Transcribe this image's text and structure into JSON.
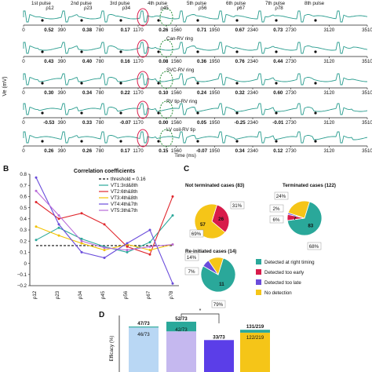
{
  "panel_a": {
    "pulse_labels": [
      "1st pulse",
      "2nd pulse",
      "3rd pulse",
      "4th pulse",
      "5th pulse",
      "6th pulse",
      "7th pulse",
      "8th pulse"
    ],
    "rho_labels": [
      "ρ12",
      "ρ23",
      "ρ34",
      "ρ45",
      "ρ56",
      "ρ67",
      "ρ78"
    ],
    "ylabel": "Ve (mV)",
    "xlabel": "Time (ms)",
    "time_ticks": [
      "0",
      "390",
      "780",
      "1170",
      "1560",
      "1950",
      "2340",
      "2730",
      "3120",
      "3510"
    ],
    "traces": [
      {
        "name": "",
        "corr": [
          "0.52",
          "0.38",
          "0.17",
          "0.26",
          "0.71",
          "0.67",
          "0.73"
        ],
        "color": "#2a9d8f"
      },
      {
        "name": "Can-RV ring",
        "corr": [
          "0.43",
          "0.40",
          "0.16",
          "0.08",
          "0.36",
          "0.76",
          "0.44"
        ],
        "color": "#2a9d8f"
      },
      {
        "name": "SVC-RV ring",
        "corr": [
          "0.30",
          "0.34",
          "0.22",
          "0.10",
          "0.24",
          "0.32",
          "0.60"
        ],
        "color": "#2a9d8f"
      },
      {
        "name": "RV tip-RV ring",
        "corr": [
          "-0.53",
          "0.33",
          "-0.07",
          "0.00",
          "0.05",
          "-0.25",
          "-0.01"
        ],
        "color": "#2a9d8f"
      },
      {
        "name": "LV coil-RV tip",
        "corr": [
          "0.26",
          "0.26",
          "0.17",
          "0.15",
          "-0.07",
          "0.34",
          "0.12"
        ],
        "color": "#2a9d8f"
      }
    ]
  },
  "panel_b": {
    "label": "B",
    "legend_items": [
      "threshold = 0.16",
      "VT1:3rd&8th",
      "VT2:6th&8th",
      "VT3:4th&8th",
      "VT4:4th&7th",
      "VT5:3th&7th"
    ],
    "chart_data": {
      "type": "line",
      "title": "Correlation coefficients",
      "categories": [
        "ρ12",
        "ρ23",
        "ρ34",
        "ρ45",
        "ρ56",
        "ρ67",
        "ρ78"
      ],
      "series": [
        {
          "name": "threshold = 0.16",
          "values": [
            0.16,
            0.16,
            0.16,
            0.16,
            0.16,
            0.16,
            0.16
          ],
          "color": "#111111",
          "dash": true
        },
        {
          "name": "VT1:3rd&8th",
          "values": [
            0.21,
            0.32,
            0.22,
            0.15,
            0.1,
            0.19,
            0.43
          ],
          "color": "#2aa89a"
        },
        {
          "name": "VT2:6th&8th",
          "values": [
            0.55,
            0.4,
            0.45,
            0.35,
            0.15,
            0.08,
            0.6
          ],
          "color": "#e0282e"
        },
        {
          "name": "VT3:4th&8th",
          "values": [
            0.33,
            0.25,
            0.18,
            0.12,
            0.17,
            0.12,
            0.17
          ],
          "color": "#f2c200"
        },
        {
          "name": "VT4:4th&7th",
          "values": [
            0.77,
            0.35,
            0.1,
            0.05,
            0.18,
            0.3,
            -0.18
          ],
          "color": "#6a4cdb"
        },
        {
          "name": "VT5:3th&7th",
          "values": [
            0.65,
            0.43,
            0.2,
            0.14,
            0.12,
            0.15,
            0.17
          ],
          "color": "#b86ad8"
        }
      ],
      "ylim": [
        -0.2,
        0.8
      ],
      "yticks": [
        "0.8",
        "0.7",
        "0.6",
        "0.5",
        "0.4",
        "0.3",
        "0.2",
        "0.1",
        "0",
        "−0.1",
        "−0.2"
      ]
    }
  },
  "panel_c": {
    "label": "C",
    "chart_data": [
      {
        "type": "pie",
        "title": "Not terminated cases (83)",
        "slices": [
          {
            "label": "Detected too early",
            "value": 26,
            "shown": "26"
          },
          {
            "label": "No detection",
            "value": 57,
            "shown": "57"
          }
        ],
        "annotations": [
          "31%",
          "69%"
        ]
      },
      {
        "type": "pie",
        "title": "Terminated cases (122)",
        "slices": [
          {
            "label": "Detected at right timing",
            "value": 83,
            "shown": "83"
          },
          {
            "label": "Detected too early",
            "value": 7,
            "shown": "7"
          },
          {
            "label": "Detected too late",
            "value": 2,
            "shown": ""
          },
          {
            "label": "No detection",
            "value": 30,
            "shown": ""
          }
        ],
        "annotations": [
          "24%",
          "2%",
          "6%",
          "68%"
        ]
      },
      {
        "type": "pie",
        "title": "Re-initiated cases (14)",
        "slices": [
          {
            "label": "Detected at right timing",
            "value": 11,
            "shown": "11"
          },
          {
            "label": "Detected too late",
            "value": 1,
            "shown": ""
          },
          {
            "label": "No detection",
            "value": 2,
            "shown": ""
          }
        ],
        "annotations": [
          "14%",
          "7%",
          "79%"
        ]
      }
    ],
    "legend": [
      {
        "label": "Detected at right timing",
        "color": "#2aa89a"
      },
      {
        "label": "Detected too early",
        "color": "#d81b4a"
      },
      {
        "label": "Detected too late",
        "color": "#6a4cdb"
      },
      {
        "label": "No detection",
        "color": "#f5c518"
      }
    ]
  },
  "panel_d": {
    "label": "D",
    "star": "*",
    "chart_data": {
      "type": "bar",
      "ylabel": "Efficacy (%)",
      "bars": [
        {
          "top_label": "47/73",
          "inner_label": "46/73",
          "stack": [
            {
              "value": 46,
              "color": "#b9d7f4"
            },
            {
              "value": 1,
              "color": "#2aa89a"
            }
          ]
        },
        {
          "top_label": "52/73",
          "inner_label": "42/73",
          "stack": [
            {
              "value": 42,
              "color": "#c5b8ef"
            },
            {
              "value": 10,
              "color": "#2aa89a"
            }
          ]
        },
        {
          "top_label": "33/73",
          "inner_label": "",
          "stack": [
            {
              "value": 33,
              "color": "#5b3ee8"
            }
          ]
        },
        {
          "top_label": "131/219",
          "inner_label": "122/219",
          "stack": [
            {
              "value": 122,
              "color": "#f5c518"
            },
            {
              "value": 9,
              "color": "#2aa89a"
            }
          ]
        }
      ]
    }
  }
}
